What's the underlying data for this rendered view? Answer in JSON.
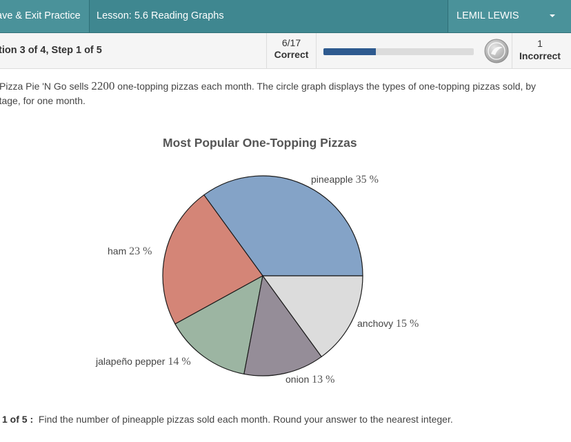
{
  "topbar": {
    "save_exit_label": "ave & Exit Practice",
    "lesson_label": "Lesson: 5.6 Reading Graphs",
    "user_name": "LEMIL LEWIS"
  },
  "status": {
    "step_label": "tion 3 of 4,  Step 1 of 5",
    "correct_count": "6/17",
    "correct_label": "Correct",
    "progress_fraction": 0.35,
    "incorrect_count": "1",
    "incorrect_label": "Incorrect",
    "colors": {
      "progress": "#2e5a8f",
      "track": "#dcdcdc",
      "bar": "#3f8790"
    }
  },
  "question": {
    "line1_a": "Pizza Pie 'N Go sells ",
    "line1_num": "2200",
    "line1_b": " one-topping pizzas each month. The circle graph displays the types of one-topping pizzas sold, by",
    "line2": "entage, for one month."
  },
  "chart_data": {
    "type": "pie",
    "title": "Most Popular One-Topping Pizzas",
    "slices": [
      {
        "label": "pineapple",
        "value": 35,
        "color": "#84a3c7"
      },
      {
        "label": "ham",
        "value": 23,
        "color": "#d48577"
      },
      {
        "label": "jalapeño pepper",
        "value": 14,
        "color": "#9cb5a2"
      },
      {
        "label": "onion",
        "value": 13,
        "color": "#958d98"
      },
      {
        "label": "anchovy",
        "value": 15,
        "color": "#dcdcdc"
      }
    ],
    "unit": "%"
  },
  "step": {
    "label": "1 of 5 :",
    "prompt": "Find the number of pineapple pizzas sold each month. Round your answer to the nearest integer."
  }
}
